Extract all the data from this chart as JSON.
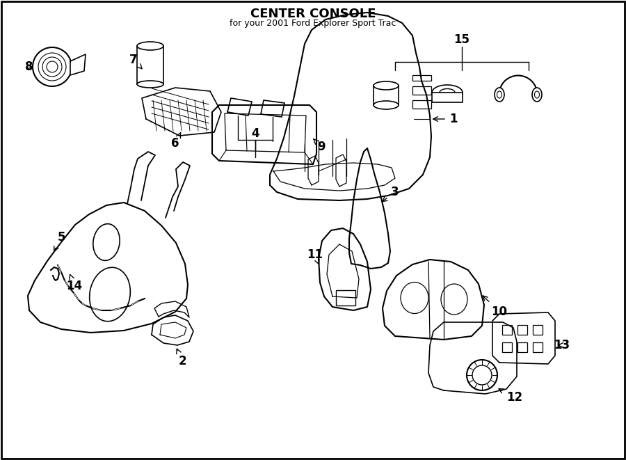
{
  "title": "CENTER CONSOLE",
  "subtitle": "for your 2001 Ford Explorer Sport Trac",
  "bg_color": "#ffffff",
  "line_color": "#000000",
  "font_size_title": 13,
  "font_size_labels": 12
}
